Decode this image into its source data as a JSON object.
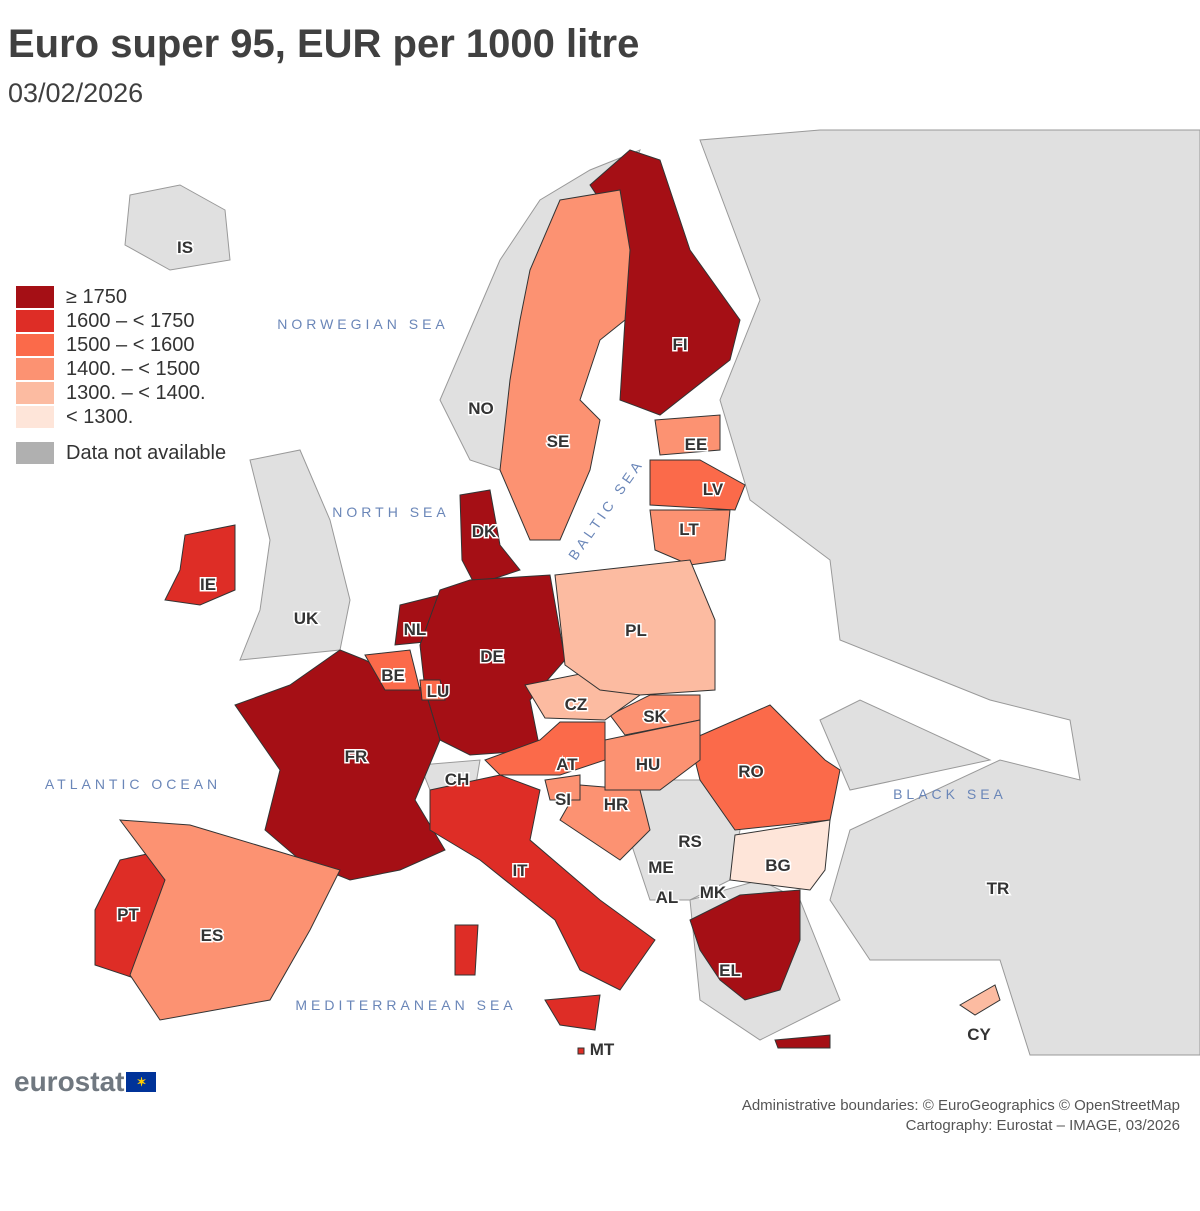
{
  "title": "Euro super 95, EUR per 1000 litre",
  "subtitle": "03/02/2026",
  "legend": {
    "classes": [
      {
        "label": "≥ 1750",
        "color": "#a50f15"
      },
      {
        "label": "1600 – < 1750",
        "color": "#de2d26"
      },
      {
        "label": "1500 – < 1600",
        "color": "#fb6a4a"
      },
      {
        "label": "1400. – < 1500",
        "color": "#fc9272"
      },
      {
        "label": "1300. – < 1400.",
        "color": "#fcbba1"
      },
      {
        "label": "< 1300.",
        "color": "#fee5d9"
      }
    ],
    "na_label": "Data not available",
    "na_color": "#b0b0b0"
  },
  "colors": {
    "non_eu": "#e0e0e0",
    "sea": "#ffffff",
    "border": "#333333"
  },
  "countries": [
    {
      "code": "FI",
      "class": 0
    },
    {
      "code": "DK",
      "class": 0
    },
    {
      "code": "NL",
      "class": 0
    },
    {
      "code": "DE",
      "class": 0
    },
    {
      "code": "FR",
      "class": 0
    },
    {
      "code": "EL",
      "class": 0
    },
    {
      "code": "IE",
      "class": 1
    },
    {
      "code": "IT",
      "class": 1
    },
    {
      "code": "PT",
      "class": 1
    },
    {
      "code": "MT",
      "class": 1
    },
    {
      "code": "LV",
      "class": 2
    },
    {
      "code": "BE",
      "class": 2
    },
    {
      "code": "LU",
      "class": 2
    },
    {
      "code": "AT",
      "class": 2
    },
    {
      "code": "RO",
      "class": 2
    },
    {
      "code": "EE",
      "class": 3
    },
    {
      "code": "SE",
      "class": 3
    },
    {
      "code": "ES",
      "class": 3
    },
    {
      "code": "HR",
      "class": 3
    },
    {
      "code": "SK",
      "class": 3
    },
    {
      "code": "HU",
      "class": 3
    },
    {
      "code": "SI",
      "class": 3
    },
    {
      "code": "LT",
      "class": 3
    },
    {
      "code": "CZ",
      "class": 4
    },
    {
      "code": "PL",
      "class": 4
    },
    {
      "code": "CY",
      "class": 4
    },
    {
      "code": "BG",
      "class": 5
    }
  ],
  "non_eu_labels": [
    "IS",
    "NO",
    "UK",
    "CH",
    "RS",
    "ME",
    "AL",
    "MK",
    "TR"
  ],
  "seas": [
    "NORWEGIAN SEA",
    "NORTH SEA",
    "BALTIC SEA",
    "ATLANTIC OCEAN",
    "BLACK SEA",
    "MEDITERRANEAN SEA"
  ],
  "logo": "eurostat",
  "credits": [
    "Administrative boundaries: © EuroGeographics © OpenStreetMap",
    "Cartography: Eurostat – IMAGE, 03/2026"
  ]
}
